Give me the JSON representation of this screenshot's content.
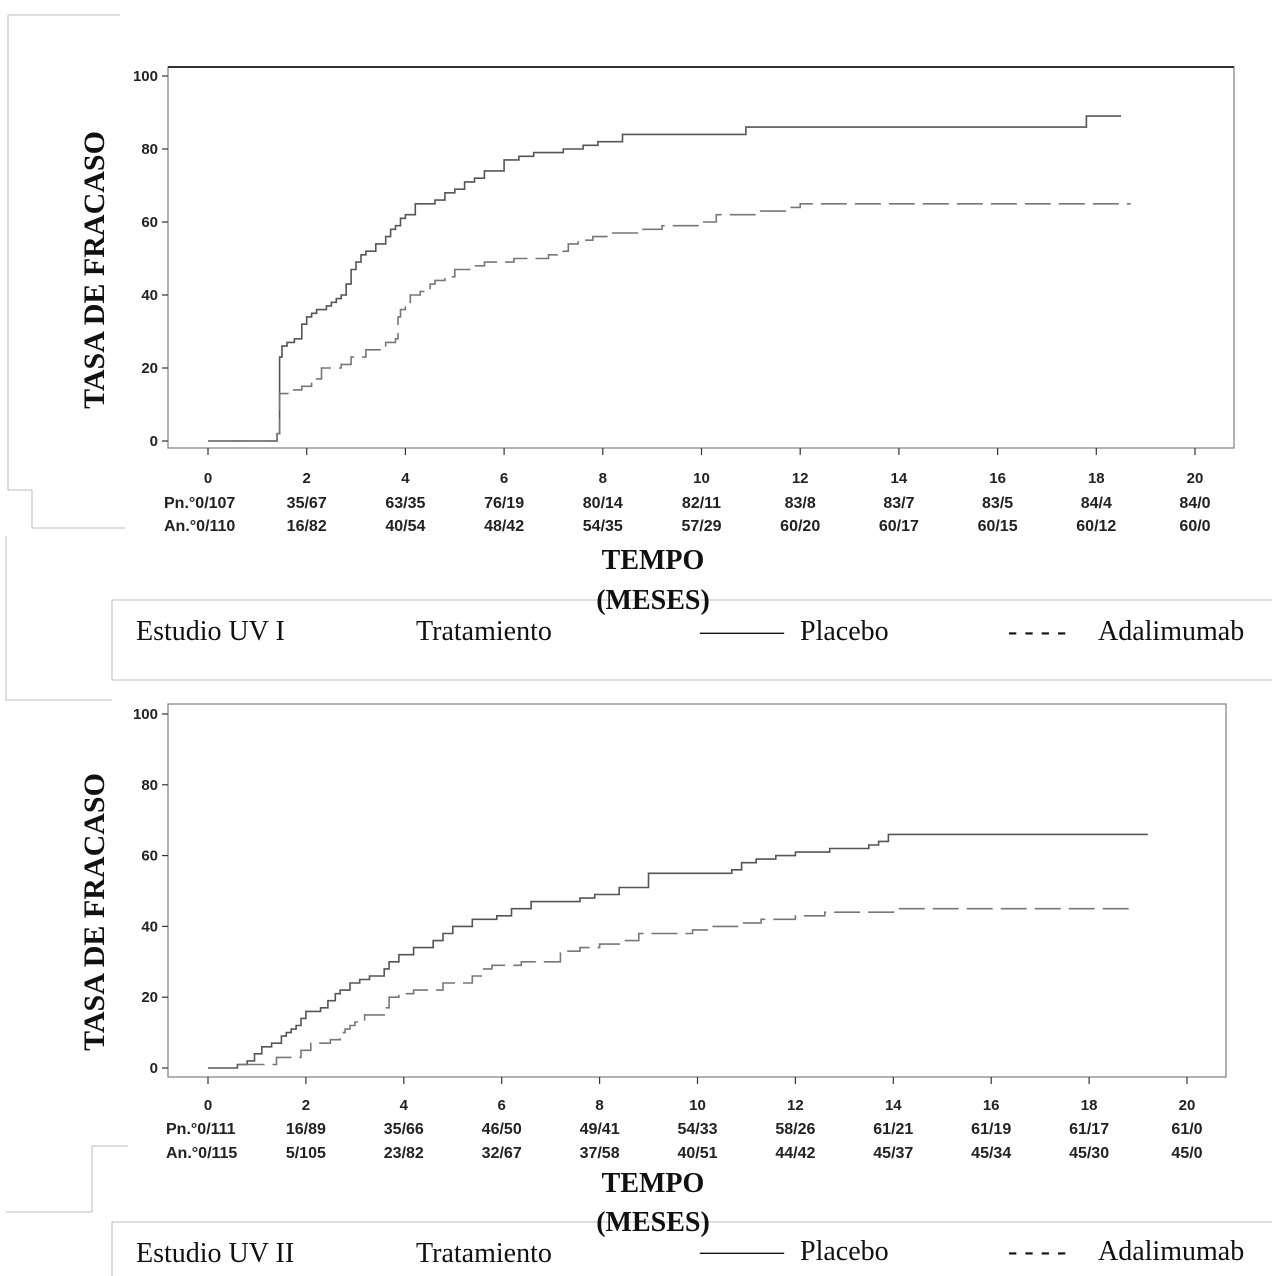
{
  "chart_data": [
    {
      "type": "line",
      "title": "",
      "ylabel": "TASA DE FRACASO",
      "xlabel": "TEMPO (MESES)",
      "xlabel_lines": [
        "TEMPO",
        "(MESES)"
      ],
      "xlim": [
        0,
        20
      ],
      "ylim": [
        0,
        100
      ],
      "xticks": [
        0,
        2,
        4,
        6,
        8,
        10,
        12,
        14,
        16,
        18,
        20
      ],
      "yticks": [
        0,
        20,
        40,
        60,
        80,
        100
      ],
      "grid": false,
      "series": [
        {
          "name": "Placebo",
          "line_style": "solid",
          "color": "#555555",
          "x": [
            0,
            1.4,
            1.45,
            1.5,
            1.6,
            1.75,
            1.9,
            2.0,
            2.1,
            2.2,
            2.4,
            2.5,
            2.6,
            2.7,
            2.8,
            2.9,
            3.0,
            3.1,
            3.2,
            3.4,
            3.6,
            3.7,
            3.8,
            3.9,
            4.0,
            4.2,
            4.6,
            4.8,
            5.0,
            5.2,
            5.4,
            5.6,
            6.0,
            6.3,
            6.6,
            7.2,
            7.6,
            7.9,
            8.4,
            10.9,
            17.8,
            18.5
          ],
          "y": [
            0,
            2,
            23,
            26,
            27,
            28,
            32,
            34,
            35,
            36,
            37,
            38,
            39,
            40,
            43,
            47,
            49,
            51,
            52,
            54,
            56,
            58,
            59,
            61,
            62,
            65,
            66,
            68,
            69,
            71,
            72,
            74,
            77,
            78,
            79,
            80,
            81,
            82,
            84,
            86,
            89,
            89
          ]
        },
        {
          "name": "Adalimumab",
          "line_style": "dashed",
          "color": "#777777",
          "x": [
            0,
            1.4,
            1.45,
            1.7,
            1.9,
            2.1,
            2.3,
            2.7,
            2.9,
            3.2,
            3.6,
            3.8,
            3.85,
            3.9,
            4.0,
            4.1,
            4.3,
            4.5,
            4.6,
            4.8,
            5.0,
            5.3,
            5.6,
            6.2,
            6.9,
            7.2,
            7.3,
            7.5,
            7.8,
            8.2,
            8.8,
            9.2,
            10.0,
            10.3,
            11.2,
            11.7,
            12.0,
            18.7
          ],
          "y": [
            0,
            2,
            13,
            14,
            15,
            17,
            20,
            21,
            23,
            25,
            27,
            28,
            34,
            36,
            38,
            40,
            41,
            43,
            44,
            45,
            47,
            48,
            49,
            50,
            51,
            52,
            54,
            55,
            56,
            57,
            58,
            59,
            60,
            62,
            63,
            64,
            65,
            65
          ]
        }
      ],
      "risk_table": {
        "rows": [
          {
            "label": "Pn.°0/107",
            "values": [
              "35/67",
              "63/35",
              "76/19",
              "80/14",
              "82/11",
              "83/8",
              "83/7",
              "83/5",
              "84/4",
              "84/0"
            ]
          },
          {
            "label": "An.°0/110",
            "values": [
              "16/82",
              "40/54",
              "48/42",
              "54/35",
              "57/29",
              "60/20",
              "60/17",
              "60/15",
              "60/12",
              "60/0"
            ]
          }
        ]
      },
      "legend": {
        "study": "Estudio UV I",
        "heading": "Tratamiento",
        "placebo_line": "———",
        "placebo_label": "Placebo",
        "adalimumab_line": "- - - -",
        "adalimumab_label": "Adalimumab"
      }
    },
    {
      "type": "line",
      "title": "",
      "ylabel": "TASA DE FRACASO",
      "xlabel": "TEMPO (MESES)",
      "xlabel_lines": [
        "TEMPO",
        "(MESES)"
      ],
      "xlim": [
        0,
        20
      ],
      "ylim": [
        0,
        100
      ],
      "xticks": [
        0,
        2,
        4,
        6,
        8,
        10,
        12,
        14,
        16,
        18,
        20
      ],
      "yticks": [
        0,
        20,
        40,
        60,
        80,
        100
      ],
      "grid": false,
      "series": [
        {
          "name": "Placebo",
          "line_style": "solid",
          "color": "#555555",
          "x": [
            0,
            0.6,
            0.8,
            0.95,
            1.1,
            1.3,
            1.5,
            1.6,
            1.7,
            1.8,
            1.9,
            2.0,
            2.3,
            2.45,
            2.6,
            2.7,
            2.9,
            3.1,
            3.3,
            3.6,
            3.7,
            3.9,
            4.2,
            4.6,
            4.8,
            5.0,
            5.4,
            5.9,
            6.2,
            6.6,
            7.6,
            7.9,
            8.4,
            9.0,
            10.7,
            10.9,
            11.2,
            11.6,
            12.0,
            12.7,
            13.5,
            13.7,
            13.9,
            19.2
          ],
          "y": [
            0,
            1,
            2,
            4,
            6,
            7,
            9,
            10,
            11,
            12,
            14,
            16,
            17,
            19,
            21,
            22,
            24,
            25,
            26,
            28,
            30,
            32,
            34,
            36,
            38,
            40,
            42,
            43,
            45,
            47,
            48,
            49,
            51,
            55,
            56,
            58,
            59,
            60,
            61,
            62,
            63,
            64,
            66,
            66
          ]
        },
        {
          "name": "Adalimumab",
          "line_style": "dashed",
          "color": "#777777",
          "x": [
            0,
            0.6,
            1.4,
            1.9,
            2.1,
            2.5,
            2.7,
            2.8,
            2.9,
            3.0,
            3.2,
            3.6,
            3.7,
            3.9,
            4.2,
            4.8,
            5.4,
            5.6,
            5.8,
            6.4,
            7.2,
            7.6,
            8.0,
            8.4,
            8.8,
            9.9,
            10.3,
            10.9,
            11.3,
            12.0,
            12.6,
            14.0,
            18.9
          ],
          "y": [
            0,
            1,
            3,
            5,
            7,
            8,
            10,
            11,
            12,
            13,
            15,
            17,
            20,
            21,
            22,
            24,
            26,
            28,
            29,
            30,
            33,
            34,
            35,
            36,
            38,
            39,
            40,
            41,
            42,
            43,
            44,
            45,
            45
          ]
        }
      ],
      "risk_table": {
        "rows": [
          {
            "label": "Pn.°0/111",
            "values": [
              "16/89",
              "35/66",
              "46/50",
              "49/41",
              "54/33",
              "58/26",
              "61/21",
              "61/19",
              "61/17",
              "61/0"
            ]
          },
          {
            "label": "An.°0/115",
            "values": [
              "5/105",
              "23/82",
              "32/67",
              "37/58",
              "40/51",
              "44/42",
              "45/37",
              "45/34",
              "45/30",
              "45/0"
            ]
          }
        ]
      },
      "legend": {
        "study": "Estudio UV II",
        "heading": "Tratamiento",
        "placebo_line": "———",
        "placebo_label": "Placebo",
        "adalimumab_line": "- - - -",
        "adalimumab_label": "Adalimumab"
      }
    }
  ]
}
